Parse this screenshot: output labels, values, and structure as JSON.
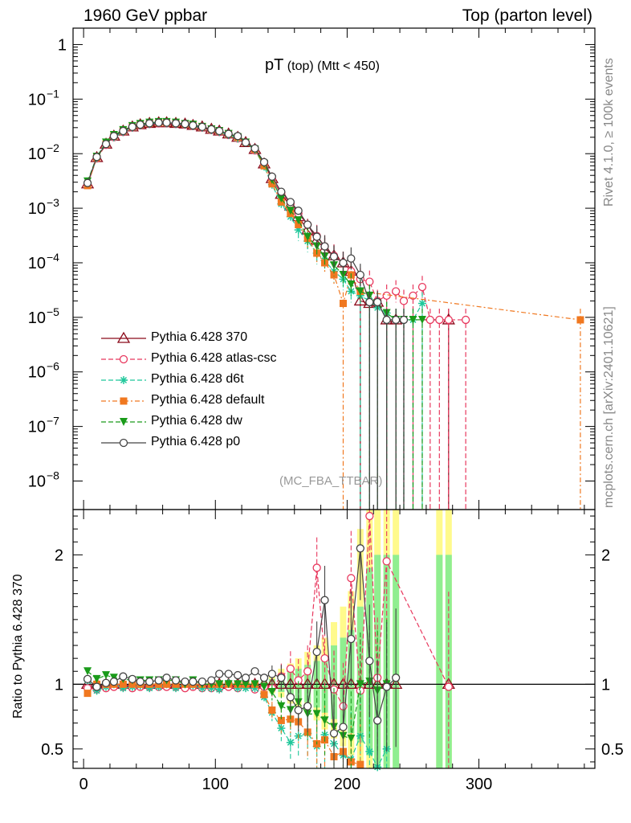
{
  "header": {
    "left": "1960 GeV ppbar",
    "right": "Top (parton level)"
  },
  "side_labels": {
    "top": "Rivet 4.1.0, ≥ 100k events",
    "bottom": "mcplots.cern.ch [arXiv:2401.10621]"
  },
  "chart_data": {
    "type": "line",
    "title_main": "pT",
    "title_sub": " (top) (Mtt < 450)",
    "analysis_tag": "(MC_FBA_TTBAR)",
    "xlim": [
      -8,
      388
    ],
    "xticks": [
      0,
      100,
      200,
      300
    ],
    "xtick_labels": [
      "0",
      "100",
      "200",
      "300"
    ],
    "main_ylim": [
      3e-09,
      2
    ],
    "main_yticks": [
      {
        "v": 1,
        "label": "1"
      },
      {
        "v": 0.1,
        "label": "10",
        "sup": "−1"
      },
      {
        "v": 0.01,
        "label": "10",
        "sup": "−2"
      },
      {
        "v": 0.001,
        "label": "10",
        "sup": "−3"
      },
      {
        "v": 0.0001,
        "label": "10",
        "sup": "−4"
      },
      {
        "v": 1e-05,
        "label": "10",
        "sup": "−5"
      },
      {
        "v": 1e-06,
        "label": "10",
        "sup": "−6"
      },
      {
        "v": 1e-07,
        "label": "10",
        "sup": "−7"
      },
      {
        "v": 1e-08,
        "label": "10",
        "sup": "−8"
      }
    ],
    "ratio_ylabel": "Ratio to Pythia 6.428 370",
    "ratio_ylim": [
      0.35,
      2.35
    ],
    "ratio_yticks": [
      {
        "v": 0.5,
        "label": "0.5"
      },
      {
        "v": 1,
        "label": "1"
      },
      {
        "v": 2,
        "label": "2"
      }
    ],
    "x": [
      3,
      10,
      17,
      23,
      30,
      37,
      43,
      50,
      57,
      63,
      70,
      77,
      83,
      90,
      97,
      103,
      110,
      117,
      123,
      130,
      137,
      143,
      150,
      157,
      163,
      170,
      177,
      183,
      190,
      197,
      203,
      210,
      217,
      223,
      230,
      237,
      243,
      250,
      257,
      263,
      270,
      277,
      290,
      377
    ],
    "series": [
      {
        "name": "Pythia 6.428 370",
        "color": "#8b0a1a",
        "marker": "tri-open",
        "dash": "",
        "values": [
          0.0028,
          0.0085,
          0.015,
          0.021,
          0.026,
          0.031,
          0.034,
          0.036,
          0.037,
          0.037,
          0.036,
          0.035,
          0.033,
          0.031,
          0.028,
          0.026,
          0.023,
          0.02,
          0.016,
          0.012,
          0.0065,
          0.0035,
          0.0018,
          0.0011,
          0.0007,
          0.0004,
          0.00026,
          0.00018,
          0.000135,
          0.0001,
          7e-05,
          2e-05,
          1.8e-05,
          1.9e-05,
          9e-06,
          9e-06,
          null,
          null,
          null,
          null,
          null,
          9e-06,
          null,
          null
        ]
      },
      {
        "name": "Pythia 6.428 atlas-csc",
        "color": "#e8385e",
        "marker": "circle-open",
        "dash": "6,3",
        "values": [
          0.0027,
          0.0082,
          0.0145,
          0.02,
          0.025,
          0.03,
          0.033,
          0.035,
          0.036,
          0.036,
          0.035,
          0.034,
          0.032,
          0.03,
          0.027,
          0.025,
          0.022,
          0.019,
          0.016,
          0.0115,
          0.0063,
          0.0034,
          0.0019,
          0.0012,
          0.0008,
          0.0005,
          0.00031,
          0.0002,
          0.000135,
          0.0001,
          7e-05,
          5e-05,
          4.5e-05,
          2e-05,
          2.5e-05,
          3e-05,
          2e-05,
          2.5e-05,
          3.6e-05,
          9e-06,
          9e-06,
          9e-06,
          9e-06,
          null
        ]
      },
      {
        "name": "Pythia 6.428 d6t",
        "color": "#1fc79a",
        "marker": "star",
        "dash": "6,3",
        "values": [
          0.0029,
          0.0083,
          0.015,
          0.02,
          0.025,
          0.03,
          0.033,
          0.035,
          0.037,
          0.036,
          0.035,
          0.034,
          0.032,
          0.03,
          0.027,
          0.025,
          0.022,
          0.019,
          0.016,
          0.0117,
          0.0058,
          0.0027,
          0.0012,
          0.0007,
          0.0004,
          0.00025,
          0.00015,
          0.00011,
          7e-05,
          5e-05,
          3e-05,
          2.5e-05,
          2e-05,
          1.5e-05,
          1.2e-05,
          9e-06,
          9e-06,
          9e-06,
          1.8e-05,
          null,
          null,
          null,
          null,
          null
        ]
      },
      {
        "name": "Pythia 6.428 default",
        "color": "#f07820",
        "marker": "square",
        "dash": "6,3,2,3",
        "values": [
          0.0026,
          0.0085,
          0.015,
          0.021,
          0.026,
          0.031,
          0.034,
          0.036,
          0.037,
          0.037,
          0.036,
          0.035,
          0.033,
          0.031,
          0.028,
          0.026,
          0.023,
          0.02,
          0.016,
          0.012,
          0.006,
          0.0028,
          0.0013,
          0.0008,
          0.0005,
          0.00028,
          0.00015,
          0.0001,
          6e-05,
          1.8e-05,
          6e-05,
          3e-05,
          null,
          null,
          null,
          null,
          null,
          null,
          null,
          null,
          null,
          null,
          null,
          9e-06
        ]
      },
      {
        "name": "Pythia 6.428 dw",
        "color": "#1a9b1a",
        "marker": "tri-down",
        "dash": "6,3",
        "values": [
          0.0031,
          0.0088,
          0.016,
          0.022,
          0.027,
          0.032,
          0.035,
          0.037,
          0.038,
          0.038,
          0.037,
          0.035,
          0.034,
          0.031,
          0.028,
          0.026,
          0.023,
          0.02,
          0.016,
          0.012,
          0.0065,
          0.0033,
          0.0015,
          0.0009,
          0.0006,
          0.0003,
          0.0002,
          0.00013,
          9e-05,
          6e-05,
          4e-05,
          3e-05,
          2.5e-05,
          1.8e-05,
          1.2e-05,
          9e-06,
          9e-06,
          9e-06,
          9e-06,
          null,
          null,
          null,
          null,
          null
        ]
      },
      {
        "name": "Pythia 6.428 p0",
        "color": "#444444",
        "marker": "circle-open",
        "dash": "",
        "values": [
          0.0029,
          0.0087,
          0.015,
          0.021,
          0.026,
          0.031,
          0.034,
          0.036,
          0.037,
          0.037,
          0.036,
          0.035,
          0.033,
          0.031,
          0.028,
          0.026,
          0.023,
          0.021,
          0.016,
          0.0125,
          0.007,
          0.0038,
          0.002,
          0.0013,
          0.0009,
          0.0005,
          0.0003,
          0.0002,
          0.00013,
          0.0001,
          0.00012,
          6e-05,
          1.9e-05,
          1.9e-05,
          9e-06,
          9e-06,
          9e-06,
          null,
          null,
          null,
          null,
          null,
          null,
          null
        ]
      }
    ],
    "ratio_series": [
      {
        "name": "Pythia 6.428 atlas-csc",
        "values": [
          0.97,
          0.96,
          0.97,
          0.98,
          0.98,
          0.97,
          0.98,
          0.98,
          0.98,
          0.98,
          0.98,
          0.97,
          0.98,
          0.97,
          0.97,
          0.97,
          0.98,
          0.97,
          0.99,
          0.96,
          0.98,
          0.97,
          1.06,
          1.12,
          1.03,
          1.1,
          1.9,
          1.2,
          0.96,
          0.83,
          1.82,
          0.95,
          2.3,
          1.05,
          1.95,
          null,
          null,
          null,
          null,
          null,
          null,
          0.98,
          null,
          null
        ]
      },
      {
        "name": "Pythia 6.428 d6t",
        "values": [
          1.03,
          0.95,
          0.98,
          1.0,
          0.97,
          0.98,
          0.99,
          0.97,
          0.98,
          1.0,
          0.97,
          1.0,
          0.99,
          0.97,
          0.97,
          0.96,
          1.01,
          0.97,
          0.97,
          0.97,
          0.9,
          0.78,
          0.66,
          0.55,
          0.6,
          0.62,
          0.52,
          0.61,
          0.54,
          0.45,
          0.42,
          0.6,
          0.48,
          0.36,
          0.5,
          null,
          null,
          null,
          null,
          null,
          null,
          null,
          null,
          null
        ]
      },
      {
        "name": "Pythia 6.428 default",
        "values": [
          0.93,
          1.0,
          1.0,
          1.0,
          1.0,
          1.0,
          1.0,
          1.0,
          1.0,
          1.0,
          1.0,
          1.0,
          1.0,
          1.0,
          1.0,
          1.0,
          1.0,
          1.0,
          1.0,
          1.0,
          0.92,
          0.8,
          0.72,
          0.73,
          0.71,
          0.63,
          0.54,
          0.57,
          0.44,
          0.48,
          0.4,
          0.38,
          null,
          null,
          null,
          null,
          null,
          null,
          null,
          null,
          null,
          null,
          null,
          null
        ]
      },
      {
        "name": "Pythia 6.428 dw",
        "values": [
          1.1,
          1.04,
          1.07,
          1.05,
          1.04,
          1.03,
          1.03,
          1.03,
          1.03,
          1.03,
          1.03,
          1.0,
          1.03,
          1.0,
          1.0,
          1.0,
          1.0,
          1.0,
          1.0,
          1.0,
          0.98,
          0.94,
          0.83,
          0.8,
          0.86,
          0.77,
          0.77,
          0.72,
          0.67,
          0.6,
          0.58,
          1.0,
          1.02,
          0.95,
          1.0,
          null,
          null,
          null,
          null,
          null,
          null,
          null,
          null,
          null
        ]
      },
      {
        "name": "Pythia 6.428 p0",
        "values": [
          1.04,
          0.98,
          1.01,
          1.02,
          1.06,
          1.04,
          1.02,
          1.02,
          1.03,
          1.05,
          1.03,
          1.02,
          1.02,
          1.02,
          1.03,
          1.08,
          1.08,
          1.07,
          1.05,
          1.1,
          1.05,
          1.08,
          1.05,
          0.9,
          0.8,
          0.83,
          1.25,
          1.65,
          0.62,
          0.67,
          1.35,
          2.05,
          1.18,
          0.72,
          0.98,
          1.05,
          null,
          null,
          null,
          null,
          null,
          null,
          null,
          null
        ]
      }
    ],
    "bands": [
      {
        "color": "#fffa8c",
        "x": [
          137,
          143,
          150,
          157,
          163,
          170,
          177,
          183,
          190,
          197,
          203,
          210,
          217,
          223,
          230,
          237,
          270,
          277
        ],
        "lo": [
          0.95,
          0.93,
          0.9,
          0.85,
          0.82,
          0.78,
          0.72,
          0.65,
          0.58,
          0.52,
          0.45,
          0.38,
          0.35,
          0.35,
          0.35,
          0.35,
          0.35,
          0.35
        ],
        "hi": [
          1.05,
          1.08,
          1.12,
          1.16,
          1.2,
          1.25,
          1.3,
          1.36,
          1.48,
          1.6,
          1.72,
          2.2,
          2.35,
          2.35,
          2.35,
          2.35,
          2.35,
          2.35
        ]
      },
      {
        "color": "#90ee90",
        "x": [
          137,
          143,
          150,
          157,
          163,
          170,
          177,
          183,
          190,
          197,
          203,
          210,
          217,
          223,
          230,
          237,
          270,
          277
        ],
        "lo": [
          0.97,
          0.96,
          0.94,
          0.91,
          0.89,
          0.86,
          0.82,
          0.78,
          0.73,
          0.68,
          0.62,
          0.55,
          0.45,
          0.35,
          0.35,
          0.35,
          0.35,
          0.35
        ],
        "hi": [
          1.03,
          1.04,
          1.07,
          1.1,
          1.12,
          1.15,
          1.18,
          1.22,
          1.3,
          1.36,
          1.42,
          1.6,
          1.9,
          2.0,
          2.0,
          2.0,
          2.0,
          2.0
        ]
      }
    ]
  }
}
